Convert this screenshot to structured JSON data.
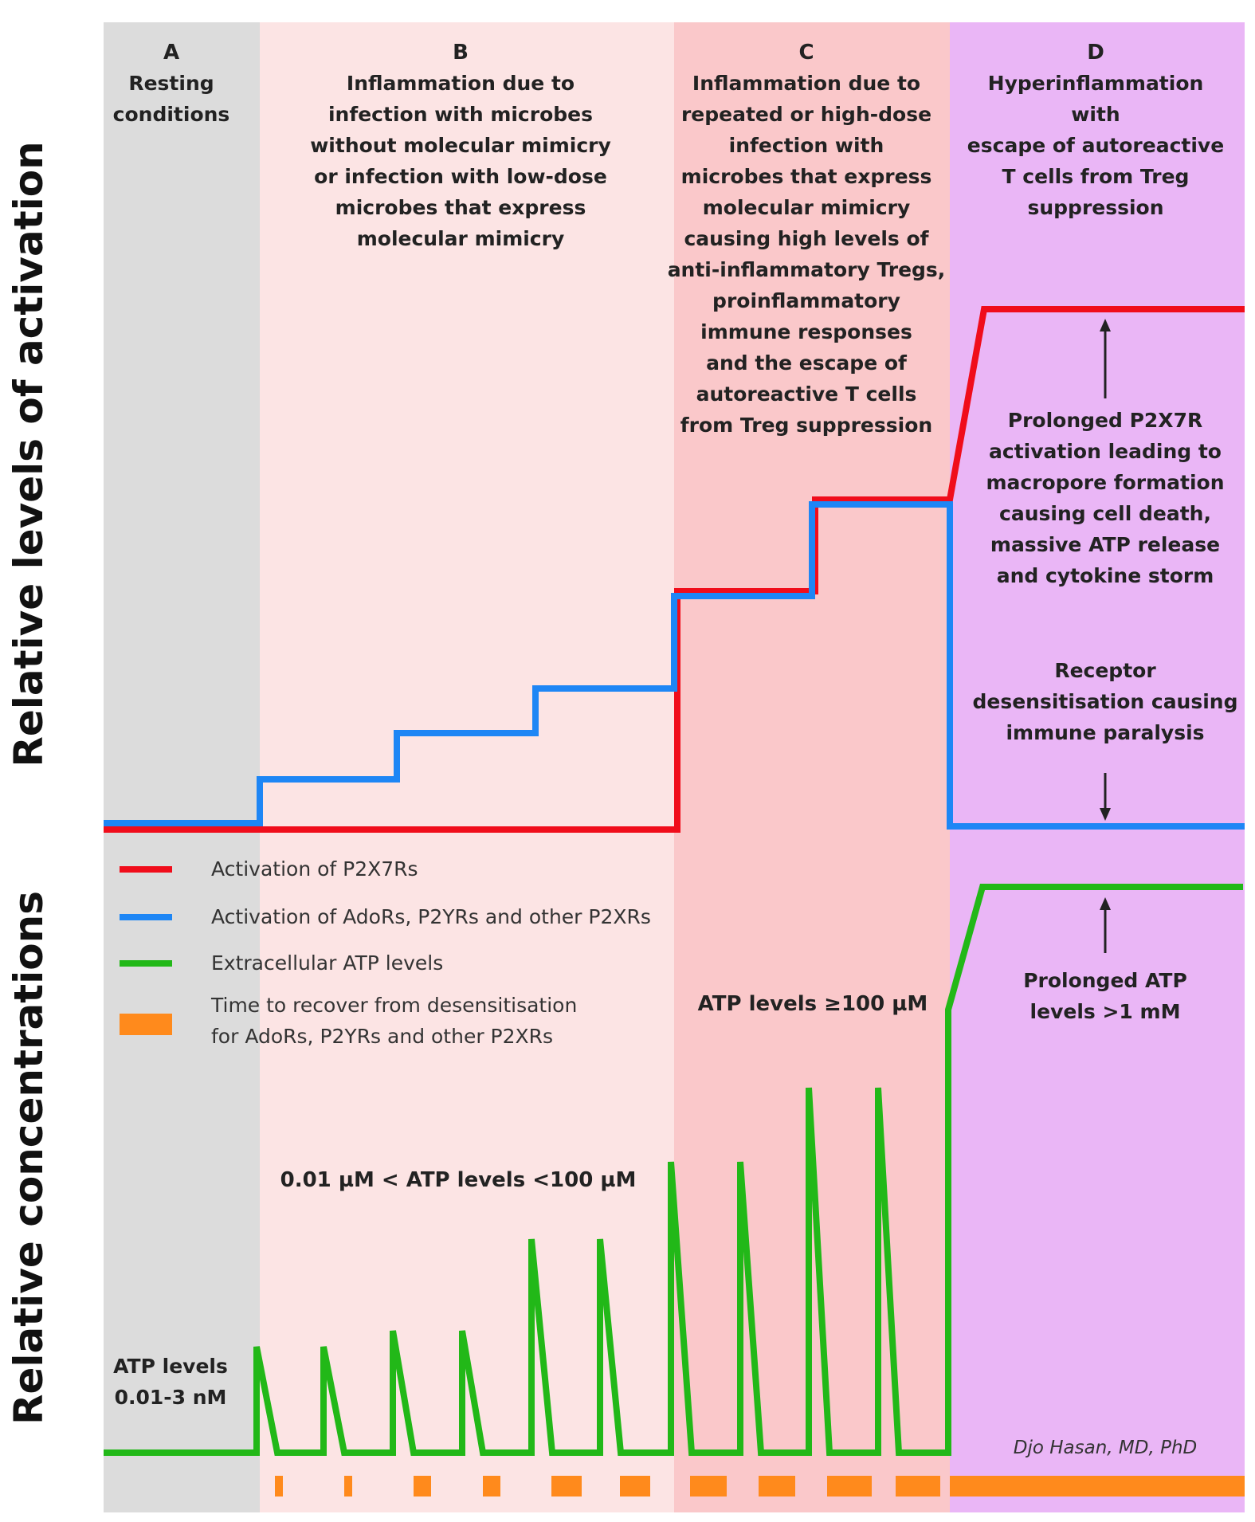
{
  "colors": {
    "panel_a": "#dcdcdc",
    "panel_b": "#fce4e4",
    "panel_c": "#fac8ca",
    "panel_d": "#eab6f6",
    "p2x7r": "#f00d1b",
    "other_receptors": "#1e86f5",
    "atp": "#22b818",
    "recovery": "#ff8a1c"
  },
  "axes": {
    "y_top": "Relative levels of activation",
    "y_bottom": "Relative concentrations"
  },
  "panels": [
    {
      "id": "A",
      "letter": "A",
      "lines": [
        "Resting",
        "conditions"
      ]
    },
    {
      "id": "B",
      "letter": "B",
      "lines": [
        "Inflammation due to",
        "infection with microbes",
        "without molecular mimicry",
        "or infection with low-dose",
        "microbes that express",
        "molecular mimicry"
      ]
    },
    {
      "id": "C",
      "letter": "C",
      "lines": [
        "Inflammation due to",
        "repeated or high-dose",
        "infection with",
        "microbes that express",
        "molecular mimicry",
        "causing high levels of",
        "anti-inflammatory Tregs,",
        "proinflammatory",
        "immune responses",
        "and the escape of",
        "autoreactive T cells",
        "from Treg suppression"
      ]
    },
    {
      "id": "D",
      "letter": "D",
      "lines": [
        "Hyperinflammation",
        "with",
        "escape of autoreactive",
        "T cells from Treg",
        "suppression"
      ]
    }
  ],
  "annotations": {
    "p2x7r_prolonged": [
      "Prolonged P2X7R",
      "activation leading to",
      "macropore formation",
      "causing cell death,",
      "massive ATP release",
      "and cytokine storm"
    ],
    "desensitisation": [
      "Receptor",
      "desensitisation causing",
      "immune paralysis"
    ],
    "atp_prolonged": [
      "Prolonged ATP",
      "levels >1 mM"
    ],
    "atp_c": "ATP levels ≥100 µM",
    "atp_b": "0.01 µM < ATP levels <100 µM",
    "atp_a": [
      "ATP levels",
      "0.01-3 nM"
    ]
  },
  "legend": [
    {
      "key": "p2x7r",
      "lines": [
        "Activation of P2X7Rs"
      ]
    },
    {
      "key": "other_receptors",
      "lines": [
        "Activation of AdoRs, P2YRs and other P2XRs"
      ]
    },
    {
      "key": "atp",
      "lines": [
        "Extracellular ATP levels"
      ]
    },
    {
      "key": "recovery",
      "lines": [
        "Time to recover from desensitisation",
        "for AdoRs, P2YRs and other P2XRs"
      ]
    }
  ],
  "signature": "Djo Hasan, MD, PhD"
}
